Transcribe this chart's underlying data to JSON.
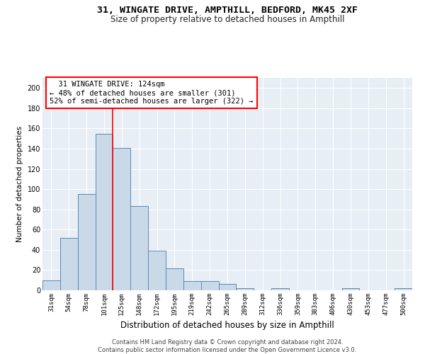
{
  "title_line1": "31, WINGATE DRIVE, AMPTHILL, BEDFORD, MK45 2XF",
  "title_line2": "Size of property relative to detached houses in Ampthill",
  "xlabel": "Distribution of detached houses by size in Ampthill",
  "ylabel": "Number of detached properties",
  "categories": [
    "31sqm",
    "54sqm",
    "78sqm",
    "101sqm",
    "125sqm",
    "148sqm",
    "172sqm",
    "195sqm",
    "219sqm",
    "242sqm",
    "265sqm",
    "289sqm",
    "312sqm",
    "336sqm",
    "359sqm",
    "383sqm",
    "406sqm",
    "430sqm",
    "453sqm",
    "477sqm",
    "500sqm"
  ],
  "values": [
    10,
    52,
    95,
    155,
    141,
    83,
    39,
    22,
    9,
    9,
    6,
    2,
    0,
    2,
    0,
    0,
    0,
    2,
    0,
    0,
    2
  ],
  "bar_color": "#c9d9e8",
  "bar_edge_color": "#5a8ab5",
  "red_line_x": 3.5,
  "annotation_text": "  31 WINGATE DRIVE: 124sqm\n← 48% of detached houses are smaller (301)\n52% of semi-detached houses are larger (322) →",
  "ylim": [
    0,
    210
  ],
  "yticks": [
    0,
    20,
    40,
    60,
    80,
    100,
    120,
    140,
    160,
    180,
    200
  ],
  "background_color": "#e8eef5",
  "grid_color": "#ffffff",
  "footer_line1": "Contains HM Land Registry data © Crown copyright and database right 2024.",
  "footer_line2": "Contains public sector information licensed under the Open Government Licence v3.0.",
  "title1_fontsize": 9.5,
  "title2_fontsize": 8.5,
  "xlabel_fontsize": 8.5,
  "ylabel_fontsize": 7.5,
  "tick_fontsize": 6.5,
  "annotation_fontsize": 7.5,
  "footer_fontsize": 6.0
}
